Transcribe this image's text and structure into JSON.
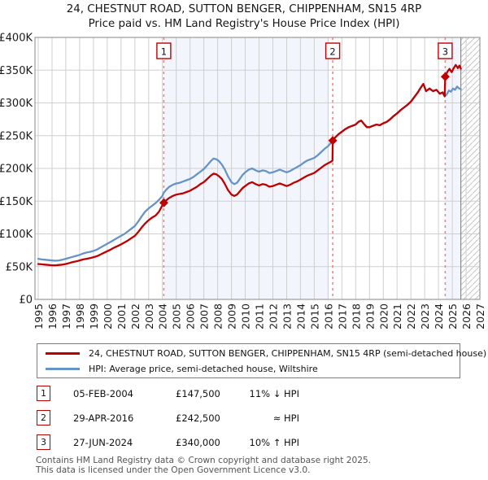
{
  "chart_data": {
    "type": "line",
    "title": "24, CHESTNUT ROAD, SUTTON BENGER, CHIPPENHAM, SN15 4RP",
    "subtitle": "Price paid vs. HM Land Registry's House Price Index (HPI)",
    "unit": "GBP thousands",
    "ylim": [
      0,
      400
    ],
    "grid": true,
    "legend_position": "below",
    "yticks": [
      {
        "label": "£0",
        "value": 0
      },
      {
        "label": "£50K",
        "value": 50
      },
      {
        "label": "£100K",
        "value": 100
      },
      {
        "label": "£150K",
        "value": 150
      },
      {
        "label": "£200K",
        "value": 200
      },
      {
        "label": "£250K",
        "value": 250
      },
      {
        "label": "£300K",
        "value": 300
      },
      {
        "label": "£350K",
        "value": 350
      },
      {
        "label": "£400K",
        "value": 400
      }
    ],
    "xticks": [
      1995,
      1996,
      1997,
      1998,
      1999,
      2000,
      2001,
      2002,
      2003,
      2004,
      2005,
      2006,
      2007,
      2008,
      2009,
      2010,
      2011,
      2012,
      2013,
      2014,
      2015,
      2016,
      2017,
      2018,
      2019,
      2020,
      2021,
      2022,
      2023,
      2024,
      2025,
      2026,
      2027
    ],
    "colors": {
      "price_paid": "#bf0000",
      "hpi": "#6694c6",
      "band": "#f2f5fc",
      "grid": "#cfcfcf",
      "border": "#9a9a9a",
      "marker_line": "#f47c7c",
      "hatch": "#c6c6c6",
      "now_line": "#8a8a8a"
    },
    "series": [
      {
        "id": "hpi",
        "name": "HPI: Average price, semi-detached house, Wiltshire",
        "color": "#6694c6",
        "points": [
          [
            1995,
            62
          ],
          [
            1995.25,
            61
          ],
          [
            1995.5,
            60.5
          ],
          [
            1995.75,
            60
          ],
          [
            1996,
            59.5
          ],
          [
            1996.25,
            59
          ],
          [
            1996.5,
            59.5
          ],
          [
            1996.75,
            60.5
          ],
          [
            1997,
            62
          ],
          [
            1997.25,
            63.5
          ],
          [
            1997.5,
            65
          ],
          [
            1997.75,
            66.5
          ],
          [
            1998,
            68
          ],
          [
            1998.25,
            70
          ],
          [
            1998.5,
            71.5
          ],
          [
            1998.75,
            72.5
          ],
          [
            1999,
            74
          ],
          [
            1999.25,
            76
          ],
          [
            1999.5,
            79
          ],
          [
            1999.75,
            82
          ],
          [
            2000,
            85
          ],
          [
            2000.25,
            88
          ],
          [
            2000.5,
            91
          ],
          [
            2000.75,
            94
          ],
          [
            2001,
            97
          ],
          [
            2001.25,
            100
          ],
          [
            2001.5,
            104
          ],
          [
            2001.75,
            108
          ],
          [
            2002,
            112
          ],
          [
            2002.25,
            119
          ],
          [
            2002.5,
            127
          ],
          [
            2002.75,
            134
          ],
          [
            2003,
            139
          ],
          [
            2003.25,
            143
          ],
          [
            2003.5,
            147
          ],
          [
            2003.75,
            152
          ],
          [
            2004,
            158
          ],
          [
            2004.1,
            163
          ],
          [
            2004.25,
            167
          ],
          [
            2004.5,
            172
          ],
          [
            2004.75,
            175
          ],
          [
            2005,
            177
          ],
          [
            2005.25,
            178
          ],
          [
            2005.5,
            180
          ],
          [
            2005.75,
            182
          ],
          [
            2006,
            184
          ],
          [
            2006.25,
            187
          ],
          [
            2006.5,
            191
          ],
          [
            2006.75,
            195
          ],
          [
            2007,
            199
          ],
          [
            2007.25,
            205
          ],
          [
            2007.5,
            211
          ],
          [
            2007.7,
            215
          ],
          [
            2007.9,
            214
          ],
          [
            2008.1,
            211
          ],
          [
            2008.3,
            206
          ],
          [
            2008.5,
            199
          ],
          [
            2008.75,
            188
          ],
          [
            2009,
            179
          ],
          [
            2009.2,
            176
          ],
          [
            2009.4,
            178
          ],
          [
            2009.6,
            184
          ],
          [
            2009.8,
            190
          ],
          [
            2010,
            194
          ],
          [
            2010.25,
            198
          ],
          [
            2010.5,
            200
          ],
          [
            2010.75,
            197
          ],
          [
            2011,
            195
          ],
          [
            2011.25,
            197
          ],
          [
            2011.5,
            196
          ],
          [
            2011.75,
            193
          ],
          [
            2012,
            194
          ],
          [
            2012.25,
            196
          ],
          [
            2012.5,
            198
          ],
          [
            2012.75,
            196
          ],
          [
            2013,
            194
          ],
          [
            2013.25,
            196
          ],
          [
            2013.5,
            199
          ],
          [
            2013.75,
            202
          ],
          [
            2014,
            205
          ],
          [
            2014.25,
            209
          ],
          [
            2014.5,
            212
          ],
          [
            2014.75,
            214
          ],
          [
            2015,
            216
          ],
          [
            2015.25,
            220
          ],
          [
            2015.5,
            225
          ],
          [
            2015.75,
            230
          ],
          [
            2016,
            234
          ],
          [
            2016.2,
            239
          ],
          [
            2016.33,
            242.5
          ],
          [
            2016.5,
            247
          ],
          [
            2016.75,
            252
          ],
          [
            2017,
            256
          ],
          [
            2017.25,
            260
          ],
          [
            2017.5,
            263
          ],
          [
            2017.75,
            265
          ],
          [
            2018,
            267
          ],
          [
            2018.2,
            271
          ],
          [
            2018.4,
            273
          ],
          [
            2018.6,
            268
          ],
          [
            2018.8,
            263
          ],
          [
            2019,
            263
          ],
          [
            2019.25,
            265
          ],
          [
            2019.5,
            267
          ],
          [
            2019.75,
            266
          ],
          [
            2020,
            269
          ],
          [
            2020.25,
            271
          ],
          [
            2020.5,
            275
          ],
          [
            2020.75,
            280
          ],
          [
            2021,
            284
          ],
          [
            2021.25,
            289
          ],
          [
            2021.5,
            293
          ],
          [
            2021.75,
            297
          ],
          [
            2022,
            302
          ],
          [
            2022.25,
            309
          ],
          [
            2022.5,
            316
          ],
          [
            2022.7,
            323
          ],
          [
            2022.9,
            329
          ],
          [
            2023.1,
            318
          ],
          [
            2023.35,
            322
          ],
          [
            2023.6,
            318
          ],
          [
            2023.85,
            320
          ],
          [
            2024.1,
            314
          ],
          [
            2024.3,
            316
          ],
          [
            2024.45,
            310
          ],
          [
            2024.6,
            313
          ],
          [
            2024.75,
            319
          ],
          [
            2024.9,
            317
          ],
          [
            2025.05,
            322
          ],
          [
            2025.2,
            320
          ],
          [
            2025.35,
            325
          ],
          [
            2025.5,
            322
          ],
          [
            2025.62,
            321
          ]
        ]
      },
      {
        "id": "price-paid",
        "name": "24, CHESTNUT ROAD, SUTTON BENGER, CHIPPENHAM, SN15 4RP (semi-detached house)",
        "color": "#bf0000",
        "points": [
          [
            1995,
            54
          ],
          [
            1995.25,
            53.5
          ],
          [
            1995.5,
            53
          ],
          [
            1995.75,
            52.5
          ],
          [
            1996,
            52
          ],
          [
            1996.25,
            52
          ],
          [
            1996.5,
            52.5
          ],
          [
            1996.75,
            53
          ],
          [
            1997,
            54
          ],
          [
            1997.25,
            55.5
          ],
          [
            1997.5,
            57
          ],
          [
            1997.75,
            58
          ],
          [
            1998,
            59.5
          ],
          [
            1998.25,
            61
          ],
          [
            1998.5,
            62
          ],
          [
            1998.75,
            63
          ],
          [
            1999,
            64.5
          ],
          [
            1999.25,
            66
          ],
          [
            1999.5,
            68.5
          ],
          [
            1999.75,
            71
          ],
          [
            2000,
            73.5
          ],
          [
            2000.25,
            76
          ],
          [
            2000.5,
            79
          ],
          [
            2000.75,
            81.5
          ],
          [
            2001,
            84
          ],
          [
            2001.25,
            87
          ],
          [
            2001.5,
            90
          ],
          [
            2001.75,
            93.5
          ],
          [
            2002,
            97
          ],
          [
            2002.25,
            103
          ],
          [
            2002.5,
            110
          ],
          [
            2002.75,
            116
          ],
          [
            2003,
            121
          ],
          [
            2003.25,
            125
          ],
          [
            2003.5,
            128
          ],
          [
            2003.75,
            134
          ],
          [
            2004,
            144
          ],
          [
            2004.1,
            147.5
          ],
          [
            2004.25,
            151
          ],
          [
            2004.5,
            155
          ],
          [
            2004.75,
            158
          ],
          [
            2005,
            160
          ],
          [
            2005.25,
            161
          ],
          [
            2005.5,
            162
          ],
          [
            2005.75,
            164
          ],
          [
            2006,
            166
          ],
          [
            2006.25,
            169
          ],
          [
            2006.5,
            172
          ],
          [
            2006.75,
            176
          ],
          [
            2007,
            179
          ],
          [
            2007.25,
            184
          ],
          [
            2007.5,
            189
          ],
          [
            2007.7,
            192
          ],
          [
            2007.9,
            191
          ],
          [
            2008.1,
            188
          ],
          [
            2008.3,
            184
          ],
          [
            2008.5,
            177
          ],
          [
            2008.75,
            167
          ],
          [
            2009,
            160
          ],
          [
            2009.2,
            158
          ],
          [
            2009.4,
            160
          ],
          [
            2009.6,
            165
          ],
          [
            2009.8,
            170
          ],
          [
            2010,
            173
          ],
          [
            2010.25,
            177
          ],
          [
            2010.5,
            179
          ],
          [
            2010.75,
            176
          ],
          [
            2011,
            174
          ],
          [
            2011.25,
            176
          ],
          [
            2011.5,
            175
          ],
          [
            2011.75,
            172
          ],
          [
            2012,
            173
          ],
          [
            2012.25,
            175
          ],
          [
            2012.5,
            177
          ],
          [
            2012.75,
            175
          ],
          [
            2013,
            173
          ],
          [
            2013.25,
            175
          ],
          [
            2013.5,
            178
          ],
          [
            2013.75,
            180
          ],
          [
            2014,
            183
          ],
          [
            2014.25,
            186
          ],
          [
            2014.5,
            189
          ],
          [
            2014.75,
            191
          ],
          [
            2015,
            193
          ],
          [
            2015.25,
            197
          ],
          [
            2015.5,
            201
          ],
          [
            2015.75,
            205
          ],
          [
            2016,
            208
          ],
          [
            2016.2,
            210
          ],
          [
            2016.32,
            212
          ],
          [
            2016.34,
            242.5
          ],
          [
            2016.5,
            247
          ],
          [
            2016.75,
            252
          ],
          [
            2017,
            256
          ],
          [
            2017.25,
            260
          ],
          [
            2017.5,
            263
          ],
          [
            2017.75,
            265
          ],
          [
            2018,
            267
          ],
          [
            2018.2,
            271
          ],
          [
            2018.4,
            273
          ],
          [
            2018.6,
            268
          ],
          [
            2018.8,
            263
          ],
          [
            2019,
            263
          ],
          [
            2019.25,
            265
          ],
          [
            2019.5,
            267
          ],
          [
            2019.75,
            266
          ],
          [
            2020,
            269
          ],
          [
            2020.25,
            271
          ],
          [
            2020.5,
            275
          ],
          [
            2020.75,
            280
          ],
          [
            2021,
            284
          ],
          [
            2021.25,
            289
          ],
          [
            2021.5,
            293
          ],
          [
            2021.75,
            297
          ],
          [
            2022,
            302
          ],
          [
            2022.25,
            309
          ],
          [
            2022.5,
            316
          ],
          [
            2022.7,
            323
          ],
          [
            2022.9,
            329
          ],
          [
            2023.1,
            318
          ],
          [
            2023.35,
            322
          ],
          [
            2023.6,
            318
          ],
          [
            2023.85,
            320
          ],
          [
            2024.1,
            314
          ],
          [
            2024.3,
            316
          ],
          [
            2024.45,
            310
          ],
          [
            2024.49,
            340
          ],
          [
            2024.65,
            348
          ],
          [
            2024.8,
            352
          ],
          [
            2024.95,
            347
          ],
          [
            2025.1,
            353
          ],
          [
            2025.25,
            358
          ],
          [
            2025.4,
            353
          ],
          [
            2025.52,
            357
          ],
          [
            2025.62,
            352
          ]
        ]
      }
    ],
    "markers": [
      {
        "num": "1",
        "date": "05-FEB-2004",
        "price": "£147,500",
        "price_gbp": 147500,
        "note": "11% ↓ HPI",
        "x": 2004.1,
        "value_k": 147.5
      },
      {
        "num": "2",
        "date": "29-APR-2016",
        "price": "£242,500",
        "price_gbp": 242500,
        "note": "≈ HPI",
        "x": 2016.34,
        "value_k": 242.5
      },
      {
        "num": "3",
        "date": "27-JUN-2024",
        "price": "£340,000",
        "price_gbp": 340000,
        "note": "10% ↑ HPI",
        "x": 2024.49,
        "value_k": 340
      }
    ],
    "bands": [
      {
        "from": 2004.1,
        "to": 2016.05
      },
      {
        "from": 2024.49,
        "to": 2025.62
      }
    ],
    "hatch": {
      "from": 2025.62,
      "to": 2027
    }
  },
  "footer": {
    "line1": "Contains HM Land Registry data © Crown copyright and database right 2025.",
    "line2": "This data is licensed under the Open Government Licence v3.0."
  }
}
